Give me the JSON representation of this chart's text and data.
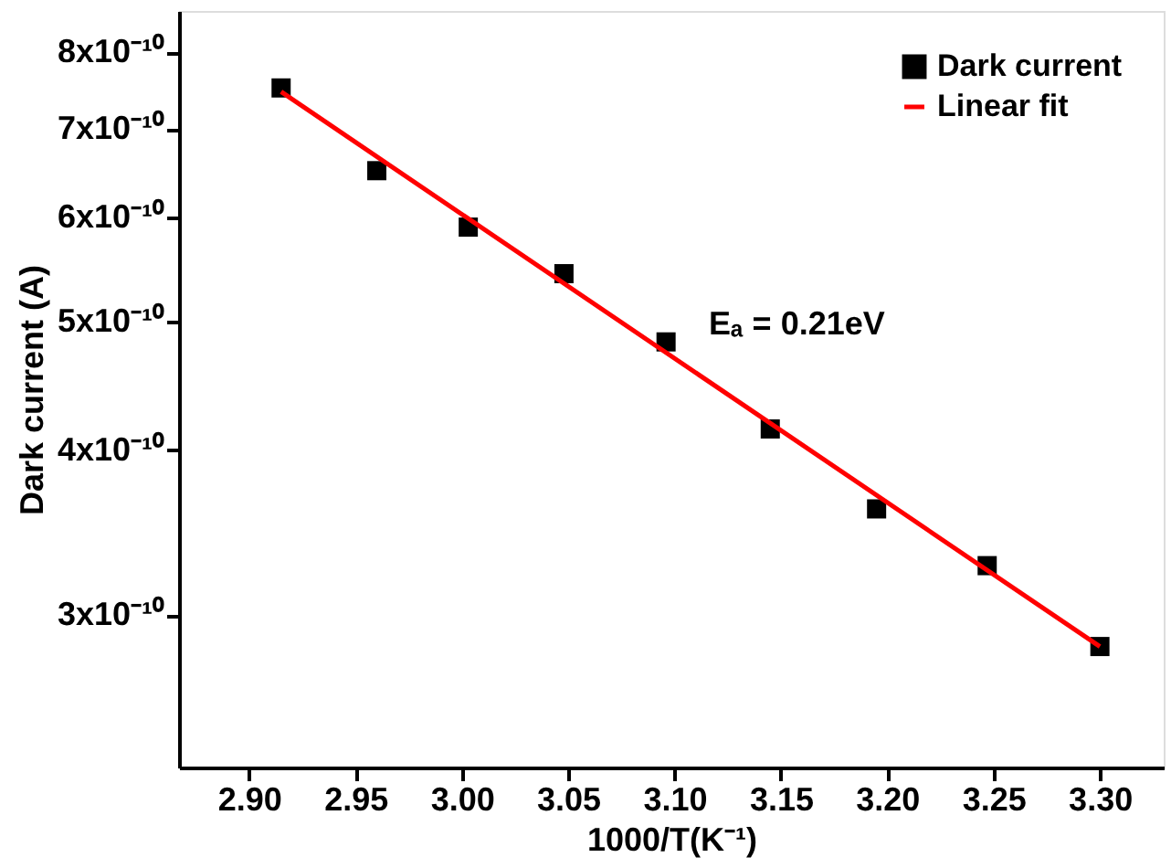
{
  "chart_data": {
    "type": "scatter",
    "xlabel": "1000/T(K⁻¹)",
    "ylabel": "Dark current (A)",
    "annotations": [
      "Eₐ = 0.21eV"
    ],
    "series": [
      {
        "name": "Dark current",
        "color": "#000000",
        "marker": "square",
        "x": [
          2.915,
          2.96,
          3.003,
          3.048,
          3.096,
          3.145,
          3.195,
          3.247,
          3.3
        ],
        "values": [
          7.52e-10,
          6.51e-10,
          5.9e-10,
          5.44e-10,
          4.83e-10,
          4.15e-10,
          3.61e-10,
          3.27e-10,
          2.84e-10
        ]
      },
      {
        "name": "Linear fit",
        "type": "line",
        "color": "#ff0000",
        "line_style": "solid",
        "x": [
          2.915,
          3.3
        ],
        "values": [
          7.47e-10,
          2.84e-10
        ]
      }
    ],
    "log": "y",
    "grid": false,
    "legend": "top right",
    "xlim": [
      2.867,
      3.33
    ],
    "xticks": [
      {
        "value": 2.9,
        "label": "2.90"
      },
      2.95,
      {
        "value": 3.0,
        "label": "3.00"
      },
      3.05,
      {
        "value": 3.1,
        "label": "3.10"
      },
      3.15,
      {
        "value": 3.2,
        "label": "3.20"
      },
      3.25,
      {
        "value": 3.3,
        "label": "3.30"
      }
    ],
    "ylim": [
      2.3e-10,
      8.6e-10
    ],
    "yticks": [
      {
        "value": 3e-10,
        "label": "3x10⁻¹⁰"
      },
      {
        "value": 4e-10,
        "label": "4x10⁻¹⁰"
      },
      {
        "value": 5e-10,
        "label": "5x10⁻¹⁰"
      },
      {
        "value": 6e-10,
        "label": "6x10⁻¹⁰"
      },
      {
        "value": 7e-10,
        "label": "7x10⁻¹⁰"
      },
      {
        "value": 8e-10,
        "label": "8x10⁻¹⁰"
      }
    ]
  }
}
